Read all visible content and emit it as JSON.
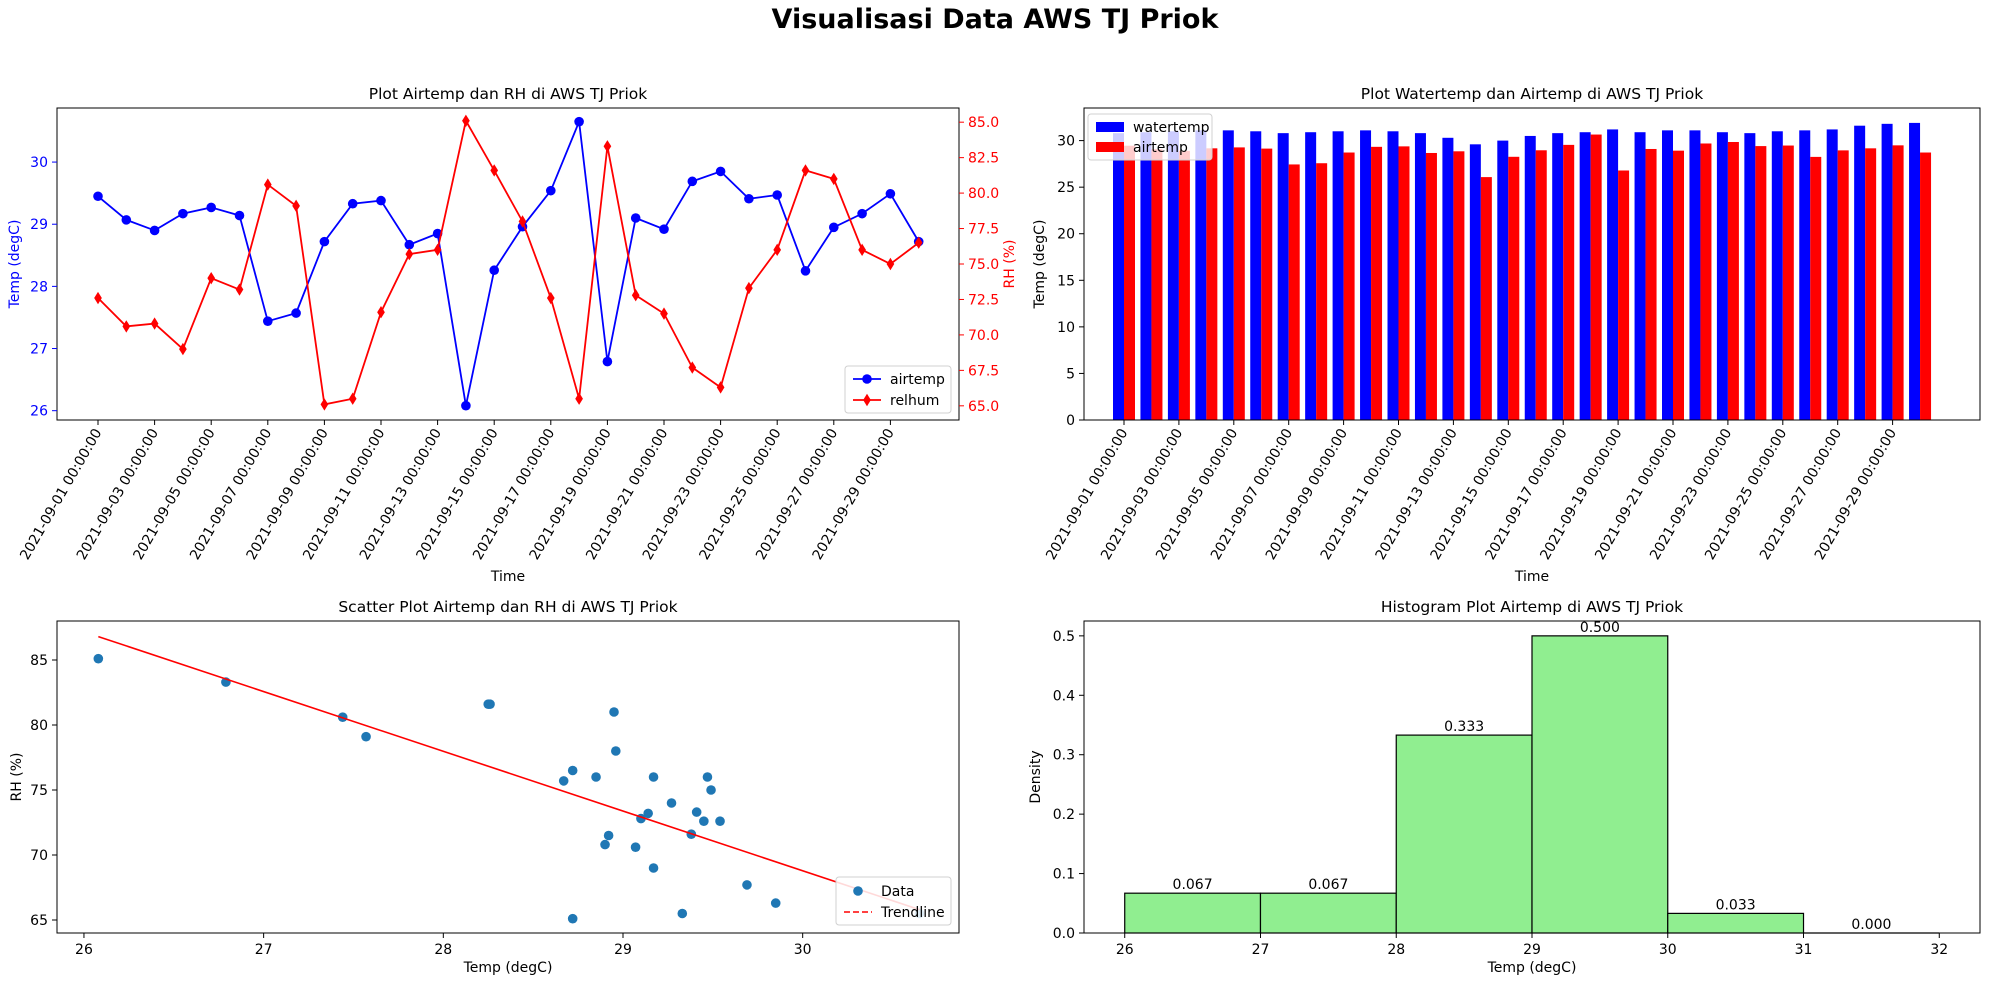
{
  "suptitle": "Visualisasi Data AWS TJ Priok",
  "dates": [
    "2021-09-01 00:00:00",
    "2021-09-02 00:00:00",
    "2021-09-03 00:00:00",
    "2021-09-04 00:00:00",
    "2021-09-05 00:00:00",
    "2021-09-06 00:00:00",
    "2021-09-07 00:00:00",
    "2021-09-08 00:00:00",
    "2021-09-09 00:00:00",
    "2021-09-10 00:00:00",
    "2021-09-11 00:00:00",
    "2021-09-12 00:00:00",
    "2021-09-13 00:00:00",
    "2021-09-14 00:00:00",
    "2021-09-15 00:00:00",
    "2021-09-16 00:00:00",
    "2021-09-17 00:00:00",
    "2021-09-18 00:00:00",
    "2021-09-19 00:00:00",
    "2021-09-20 00:00:00",
    "2021-09-21 00:00:00",
    "2021-09-22 00:00:00",
    "2021-09-23 00:00:00",
    "2021-09-24 00:00:00",
    "2021-09-25 00:00:00",
    "2021-09-26 00:00:00",
    "2021-09-27 00:00:00",
    "2021-09-28 00:00:00",
    "2021-09-29 00:00:00",
    "2021-09-30 00:00:00"
  ],
  "date_tick_labels": [
    "2021-09-01 00:00:00",
    "2021-09-03 00:00:00",
    "2021-09-05 00:00:00",
    "2021-09-07 00:00:00",
    "2021-09-09 00:00:00",
    "2021-09-11 00:00:00",
    "2021-09-13 00:00:00",
    "2021-09-15 00:00:00",
    "2021-09-17 00:00:00",
    "2021-09-19 00:00:00",
    "2021-09-21 00:00:00",
    "2021-09-23 00:00:00",
    "2021-09-25 00:00:00",
    "2021-09-27 00:00:00",
    "2021-09-29 00:00:00"
  ],
  "chart_data": [
    {
      "type": "line",
      "title": "Plot Airtemp dan RH di AWS TJ Priok",
      "xlabel": "Time",
      "ylabel": "Temp (degC)",
      "ylabel_right": "RH (%)",
      "ylim": [
        25.85,
        30.87
      ],
      "ylim_right": [
        64.0,
        86.0
      ],
      "yticks": [
        "26",
        "27",
        "28",
        "29",
        "30"
      ],
      "yticks_right": [
        "65.0",
        "67.5",
        "70.0",
        "72.5",
        "75.0",
        "77.5",
        "80.0",
        "82.5",
        "85.0"
      ],
      "legend_loc": "lower right",
      "series": [
        {
          "name": "airtemp",
          "axis": "left",
          "color": "#0000ff",
          "marker": "circle",
          "values": [
            29.45,
            29.07,
            28.9,
            29.17,
            29.27,
            29.14,
            27.44,
            27.57,
            28.72,
            29.33,
            29.38,
            28.67,
            28.85,
            26.08,
            28.26,
            28.96,
            29.54,
            30.65,
            26.79,
            29.1,
            28.92,
            29.69,
            29.85,
            29.41,
            29.47,
            28.25,
            28.95,
            29.17,
            29.49,
            28.72
          ]
        },
        {
          "name": "relhum",
          "axis": "right",
          "color": "#ff0000",
          "marker": "diamond",
          "values": [
            72.6,
            70.6,
            70.8,
            69.0,
            74.0,
            73.2,
            80.6,
            79.1,
            65.1,
            65.5,
            71.6,
            75.7,
            76.0,
            85.1,
            81.6,
            78.0,
            72.6,
            65.5,
            83.3,
            72.8,
            71.5,
            67.7,
            66.3,
            73.3,
            76.0,
            81.6,
            81.0,
            76.0,
            75.0,
            76.5
          ]
        }
      ]
    },
    {
      "type": "bar",
      "title": "Plot Watertemp dan Airtemp di AWS TJ Priok",
      "xlabel": "Time",
      "ylabel": "Temp (degC)",
      "ylim": [
        0,
        33.5
      ],
      "yticks": [
        "0",
        "5",
        "10",
        "15",
        "20",
        "25",
        "30"
      ],
      "legend_loc": "upper left",
      "series": [
        {
          "name": "watertemp",
          "color": "#0000ff",
          "values": [
            30.8,
            30.9,
            31.0,
            31.1,
            31.1,
            31.0,
            30.8,
            30.9,
            31.0,
            31.1,
            31.0,
            30.8,
            30.3,
            29.6,
            30.0,
            30.5,
            30.8,
            30.9,
            31.2,
            30.9,
            31.1,
            31.1,
            30.9,
            30.8,
            31.0,
            31.1,
            31.2,
            31.6,
            31.8,
            31.9
          ]
        },
        {
          "name": "airtemp",
          "color": "#ff0000",
          "values": [
            29.45,
            29.07,
            28.9,
            29.17,
            29.27,
            29.14,
            27.44,
            27.57,
            28.72,
            29.33,
            29.38,
            28.67,
            28.85,
            26.08,
            28.26,
            28.96,
            29.54,
            30.65,
            26.79,
            29.1,
            28.92,
            29.69,
            29.85,
            29.41,
            29.47,
            28.25,
            28.95,
            29.17,
            29.49,
            28.72
          ]
        }
      ]
    },
    {
      "type": "scatter",
      "title": "Scatter Plot Airtemp dan RH di AWS TJ Priok",
      "xlabel": "Temp (degC)",
      "ylabel": "RH (%)",
      "xlim": [
        25.85,
        30.87
      ],
      "ylim": [
        64.0,
        88.0
      ],
      "xticks": [
        "26",
        "27",
        "28",
        "29",
        "30"
      ],
      "yticks": [
        "65",
        "70",
        "75",
        "80",
        "85"
      ],
      "legend_loc": "lower right",
      "series": [
        {
          "name": "Data",
          "color": "#1f77b4"
        },
        {
          "name": "Trendline",
          "color": "#ff0000",
          "style": "dashed"
        }
      ],
      "x": [
        29.45,
        29.07,
        28.9,
        29.17,
        29.27,
        29.14,
        27.44,
        27.57,
        28.72,
        29.33,
        29.38,
        28.67,
        28.85,
        26.08,
        28.26,
        28.96,
        29.54,
        30.65,
        26.79,
        29.1,
        28.92,
        29.69,
        29.85,
        29.41,
        29.47,
        28.25,
        28.95,
        29.17,
        29.49,
        28.72
      ],
      "y": [
        72.6,
        70.6,
        70.8,
        69.0,
        74.0,
        73.2,
        80.6,
        79.1,
        65.1,
        65.5,
        71.6,
        75.7,
        76.0,
        85.1,
        81.6,
        78.0,
        72.6,
        65.5,
        83.3,
        72.8,
        71.5,
        67.7,
        66.3,
        73.3,
        76.0,
        81.6,
        81.0,
        76.0,
        75.0,
        76.5
      ],
      "trendline": {
        "x": [
          26.08,
          30.65
        ],
        "y": [
          86.8,
          65.8
        ]
      }
    },
    {
      "type": "bar",
      "title": "Histogram Plot Airtemp di AWS TJ Priok",
      "xlabel": "Temp (degC)",
      "ylabel": "Density",
      "xlim": [
        25.7,
        32.3
      ],
      "ylim": [
        0,
        0.525
      ],
      "xticks": [
        "26",
        "27",
        "28",
        "29",
        "30",
        "31",
        "32"
      ],
      "yticks": [
        "0.0",
        "0.1",
        "0.2",
        "0.3",
        "0.4",
        "0.5"
      ],
      "color": "#90ee90",
      "bin_edges": [
        26,
        27,
        28,
        29,
        30,
        31,
        32
      ],
      "values": [
        0.067,
        0.067,
        0.333,
        0.5,
        0.033,
        0.0
      ],
      "value_labels": [
        "0.067",
        "0.067",
        "0.333",
        "0.500",
        "0.033",
        "0.000"
      ]
    }
  ]
}
